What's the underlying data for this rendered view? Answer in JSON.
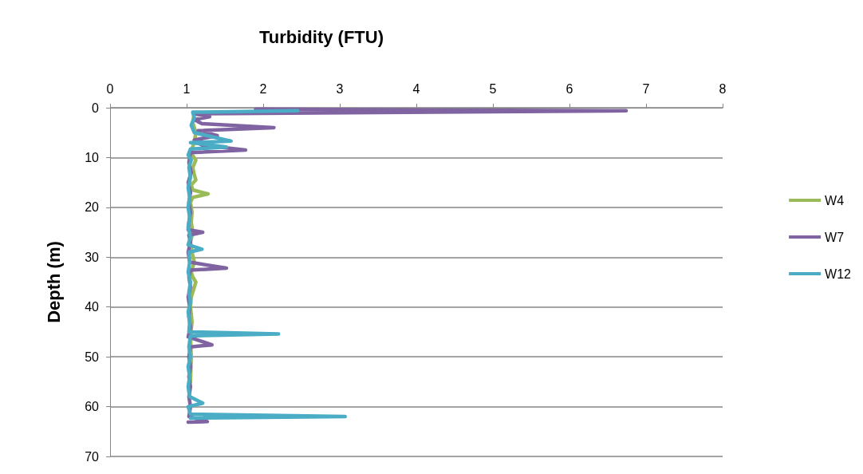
{
  "chart_data": {
    "type": "line",
    "title": "Turbidity (FTU)",
    "ylabel": "Depth (m)",
    "xlim": [
      0,
      8
    ],
    "xticks": [
      0,
      1,
      2,
      3,
      4,
      5,
      6,
      7,
      8
    ],
    "ylim": [
      70,
      0
    ],
    "yticks": [
      0,
      10,
      20,
      30,
      40,
      50,
      60,
      70
    ],
    "grid": "y",
    "legend": "right",
    "marker": "none",
    "line_style": "solid",
    "series": [
      {
        "name": "W4",
        "color": "#9bbb59",
        "x": [
          1.1,
          1.08,
          1.12,
          1.1,
          1.05,
          1.12,
          1.08,
          1.1,
          1.12,
          1.06,
          1.08,
          1.28,
          1.08,
          1.05,
          1.07,
          1.06,
          1.08,
          1.05,
          1.07,
          1.1,
          1.06,
          1.08,
          1.12,
          1.1,
          1.06,
          1.05,
          1.07,
          1.05,
          1.06,
          1.05
        ],
        "values": [
          1,
          3,
          5,
          7,
          9,
          10.5,
          12,
          13.5,
          14.5,
          15.5,
          16.5,
          17.3,
          18,
          19,
          21,
          23,
          25,
          27,
          29,
          31,
          33,
          34,
          35,
          36,
          38,
          40,
          43,
          46,
          50,
          55
        ]
      },
      {
        "name": "W7",
        "color": "#8064a2",
        "x": [
          1.9,
          6.74,
          1.1,
          1.3,
          1.1,
          1.2,
          2.14,
          1.15,
          1.4,
          1.1,
          1.2,
          1.77,
          1.05,
          1.03,
          1.06,
          1.02,
          1.05,
          1.03,
          1.05,
          1.03,
          1.02,
          1.21,
          1.03,
          1.05,
          1.02,
          1.04,
          1.52,
          1.05,
          1.03,
          1.05,
          1.02,
          1.04,
          1.03,
          1.05,
          1.02,
          1.33,
          1.05,
          1.03,
          1.05,
          1.03,
          1.05,
          1.03,
          1.05,
          1.03,
          1.27,
          1.02
        ],
        "values": [
          0.3,
          0.6,
          1.2,
          1.8,
          2.4,
          3.2,
          4,
          4.6,
          5.6,
          6.5,
          7.5,
          8.5,
          9,
          11,
          13,
          15,
          17,
          19,
          21,
          23,
          24.5,
          25,
          25.6,
          27,
          29,
          31,
          32.2,
          32.6,
          34,
          36,
          38,
          40,
          42,
          44,
          46,
          47.6,
          48,
          50,
          52,
          54,
          56,
          58,
          60,
          62,
          63,
          63.1
        ]
      },
      {
        "name": "W12",
        "color": "#4bacc6",
        "x": [
          2.45,
          1.08,
          1.1,
          1.06,
          1.1,
          1.58,
          1.05,
          1.52,
          1.05,
          1.02,
          1.06,
          1.03,
          1.05,
          1.02,
          1.04,
          1.02,
          1.04,
          1.02,
          1.05,
          1.02,
          1.2,
          1.03,
          1.04,
          1.02,
          1.05,
          1.03,
          1.05,
          1.02,
          1.04,
          1.03,
          2.2,
          1.05,
          1.03,
          1.05,
          1.02,
          1.04,
          1.02,
          1.04,
          1.21,
          1.02,
          1.05,
          3.07,
          1.05
        ],
        "values": [
          0.6,
          0.9,
          2,
          3.5,
          5,
          6.7,
          7,
          7.9,
          8.3,
          9.5,
          10.5,
          12,
          14,
          16,
          18,
          20,
          22,
          24,
          26,
          27.5,
          28.4,
          29,
          31,
          33,
          35,
          37,
          39,
          41,
          43,
          45,
          45.4,
          45.8,
          48,
          50,
          52,
          54,
          56,
          58,
          59.3,
          60,
          61.5,
          62,
          62.3
        ]
      }
    ]
  }
}
